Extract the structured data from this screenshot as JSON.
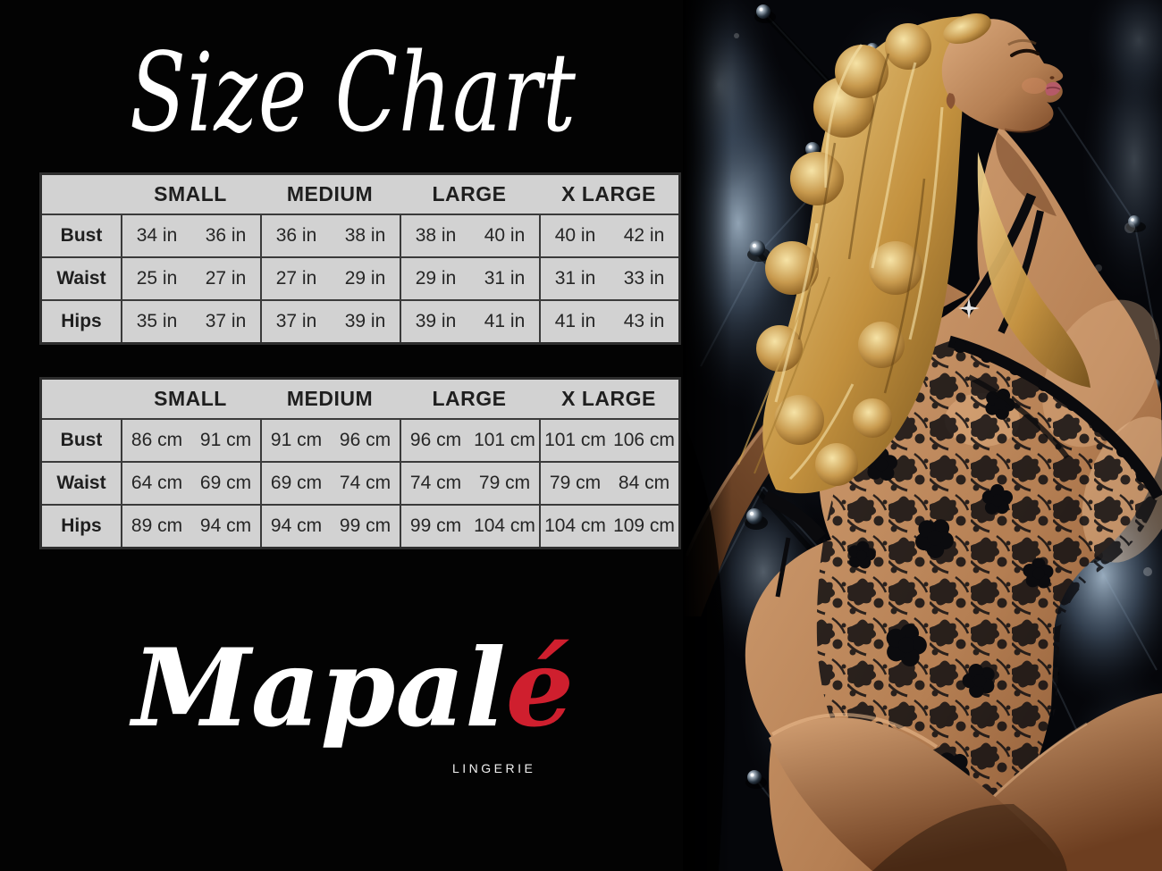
{
  "page": {
    "title": "Size Chart",
    "background_color": "#000000"
  },
  "brand": {
    "name_main": "Mapal",
    "name_accent": "é",
    "accent_color": "#cf1f2e",
    "tagline": "LINGERIE"
  },
  "size_tables": [
    {
      "unit": "in",
      "columns": [
        "SMALL",
        "MEDIUM",
        "LARGE",
        "X LARGE"
      ],
      "rows": [
        {
          "label": "Bust",
          "values": [
            [
              "34 in",
              "36 in"
            ],
            [
              "36 in",
              "38 in"
            ],
            [
              "38 in",
              "40 in"
            ],
            [
              "40 in",
              "42 in"
            ]
          ]
        },
        {
          "label": "Waist",
          "values": [
            [
              "25 in",
              "27 in"
            ],
            [
              "27 in",
              "29 in"
            ],
            [
              "29 in",
              "31 in"
            ],
            [
              "31 in",
              "33 in"
            ]
          ]
        },
        {
          "label": "Hips",
          "values": [
            [
              "35 in",
              "37 in"
            ],
            [
              "37 in",
              "39 in"
            ],
            [
              "39 in",
              "41 in"
            ],
            [
              "41 in",
              "43 in"
            ]
          ]
        }
      ]
    },
    {
      "unit": "cm",
      "columns": [
        "SMALL",
        "MEDIUM",
        "LARGE",
        "X LARGE"
      ],
      "rows": [
        {
          "label": "Bust",
          "values": [
            [
              "86 cm",
              "91 cm"
            ],
            [
              "91 cm",
              "96 cm"
            ],
            [
              "96 cm",
              "101 cm"
            ],
            [
              "101 cm",
              "106 cm"
            ]
          ]
        },
        {
          "label": "Waist",
          "values": [
            [
              "64 cm",
              "69 cm"
            ],
            [
              "69 cm",
              "74 cm"
            ],
            [
              "74 cm",
              "79 cm"
            ],
            [
              "79 cm",
              "84 cm"
            ]
          ]
        },
        {
          "label": "Hips",
          "values": [
            [
              "89 cm",
              "94 cm"
            ],
            [
              "94 cm",
              "99 cm"
            ],
            [
              "99 cm",
              "104 cm"
            ],
            [
              "104 cm",
              "109 cm"
            ]
          ]
        }
      ]
    }
  ],
  "table_style": {
    "background": "#d2d2d2",
    "border": "#3a3a3a",
    "text": "#1f1f1f"
  },
  "photo_palette": {
    "tuft_blue_light": "#9db3c8",
    "tuft_blue_dark": "#24313f",
    "hair_gold": "#d8ae5e",
    "skin_tan": "#c08a5e",
    "lace_black": "#0b0b0d"
  }
}
